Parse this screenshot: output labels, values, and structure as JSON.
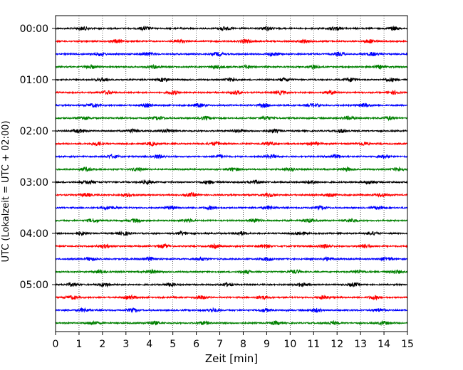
{
  "chart_data": {
    "type": "line",
    "title": "",
    "xlabel": "Zeit  [min]",
    "ylabel": "UTC (Lokalzeit = UTC + 02:00)",
    "xlim": [
      0,
      15
    ],
    "x_ticks": [
      0,
      1,
      2,
      3,
      4,
      5,
      6,
      7,
      8,
      9,
      10,
      11,
      12,
      13,
      14,
      15
    ],
    "x_grid": "dotted-vertical",
    "y_tick_labels": [
      "00:00",
      "01:00",
      "02:00",
      "03:00",
      "04:00",
      "05:00"
    ],
    "trace_interval_min": 15,
    "trace_colors": [
      "#000000",
      "#ff0000",
      "#0000ff",
      "#008000"
    ],
    "series": [
      {
        "start": "00:00",
        "color": "#000000",
        "bursts_min": [
          1.2,
          3.8,
          7.2,
          9.0,
          11.9,
          14.4
        ]
      },
      {
        "start": "00:15",
        "color": "#ff0000",
        "bursts_min": [
          2.6,
          5.3,
          8.1,
          10.6,
          13.4
        ]
      },
      {
        "start": "00:30",
        "color": "#0000ff",
        "bursts_min": [
          1.9,
          3.9,
          6.9,
          9.3,
          12.1,
          13.5
        ]
      },
      {
        "start": "00:45",
        "color": "#008000",
        "bursts_min": [
          1.5,
          4.2,
          6.9,
          8.2,
          11.0,
          13.8
        ]
      },
      {
        "start": "01:00",
        "color": "#000000",
        "bursts_min": [
          2.0,
          4.6,
          7.5,
          9.8,
          12.6,
          14.3
        ]
      },
      {
        "start": "01:15",
        "color": "#ff0000",
        "bursts_min": [
          2.2,
          5.0,
          7.7,
          9.6,
          11.7,
          14.4
        ]
      },
      {
        "start": "01:30",
        "color": "#0000ff",
        "bursts_min": [
          1.6,
          3.9,
          6.1,
          8.9,
          11.0,
          13.2
        ]
      },
      {
        "start": "01:45",
        "color": "#008000",
        "bursts_min": [
          1.2,
          4.4,
          6.4,
          9.0,
          12.5,
          14.2
        ]
      },
      {
        "start": "02:00",
        "color": "#000000",
        "bursts_min": [
          1.0,
          3.3,
          4.8,
          7.8,
          9.3,
          12.2
        ]
      },
      {
        "start": "02:15",
        "color": "#ff0000",
        "bursts_min": [
          1.8,
          4.1,
          6.8,
          9.1,
          11.0,
          13.1
        ]
      },
      {
        "start": "02:30",
        "color": "#0000ff",
        "bursts_min": [
          2.4,
          4.4,
          7.0,
          9.2,
          11.9,
          14.0
        ]
      },
      {
        "start": "02:45",
        "color": "#008000",
        "bursts_min": [
          1.3,
          3.5,
          7.6,
          10.0,
          12.4,
          14.6
        ]
      },
      {
        "start": "03:00",
        "color": "#000000",
        "bursts_min": [
          1.4,
          3.9,
          6.5,
          8.5,
          10.9,
          13.4
        ]
      },
      {
        "start": "03:15",
        "color": "#ff0000",
        "bursts_min": [
          1.3,
          3.1,
          5.8,
          9.1,
          11.7,
          13.9
        ]
      },
      {
        "start": "03:30",
        "color": "#0000ff",
        "bursts_min": [
          2.3,
          4.9,
          6.6,
          9.1,
          11.3,
          13.8
        ]
      },
      {
        "start": "03:45",
        "color": "#008000",
        "bursts_min": [
          1.6,
          3.4,
          5.6,
          8.5,
          10.8,
          12.6
        ]
      },
      {
        "start": "04:00",
        "color": "#000000",
        "bursts_min": [
          1.1,
          2.9,
          5.4,
          7.9,
          10.4,
          13.5
        ]
      },
      {
        "start": "04:15",
        "color": "#ff0000",
        "bursts_min": [
          2.1,
          4.6,
          6.8,
          8.9,
          11.5,
          13.2
        ]
      },
      {
        "start": "04:30",
        "color": "#0000ff",
        "bursts_min": [
          1.5,
          4.0,
          6.2,
          9.0,
          11.6,
          14.1
        ]
      },
      {
        "start": "04:45",
        "color": "#008000",
        "bursts_min": [
          1.9,
          4.1,
          8.1,
          10.2,
          12.9,
          14.5
        ]
      },
      {
        "start": "05:00",
        "color": "#000000",
        "bursts_min": [
          0.7,
          2.1,
          4.9,
          7.3,
          10.5,
          12.7
        ]
      },
      {
        "start": "05:15",
        "color": "#ff0000",
        "bursts_min": [
          0.7,
          3.2,
          6.2,
          8.8,
          11.4,
          13.6
        ]
      },
      {
        "start": "05:30",
        "color": "#0000ff",
        "bursts_min": [
          1.2,
          3.3,
          6.7,
          8.9,
          11.1,
          13.8
        ]
      },
      {
        "start": "05:45",
        "color": "#008000",
        "bursts_min": [
          1.6,
          4.2,
          6.3,
          9.4,
          11.8,
          14.0
        ]
      }
    ]
  }
}
